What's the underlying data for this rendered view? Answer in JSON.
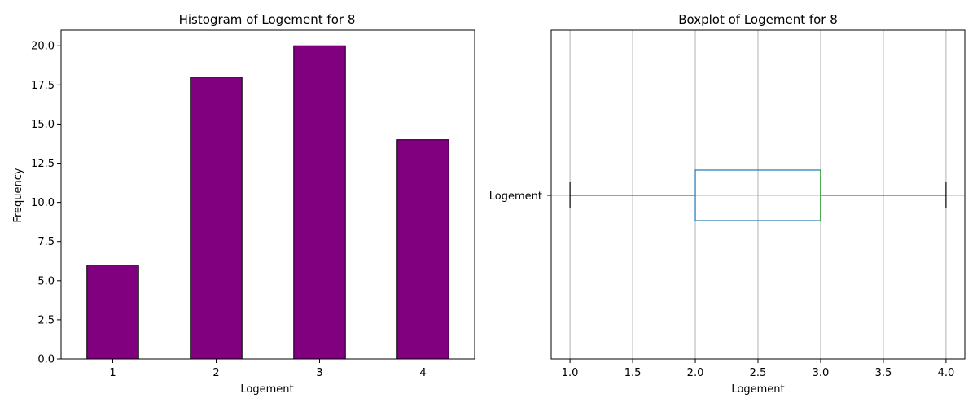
{
  "chart_data": [
    {
      "type": "bar",
      "title": "Histogram of Logement for 8",
      "xlabel": "Logement",
      "ylabel": "Frequency",
      "categories": [
        "1",
        "2",
        "3",
        "4"
      ],
      "values": [
        6,
        18,
        20,
        14
      ],
      "ylim": [
        0,
        21
      ],
      "yticks": [
        "0.0",
        "2.5",
        "5.0",
        "7.5",
        "10.0",
        "12.5",
        "15.0",
        "17.5",
        "20.0"
      ],
      "bar_color": "#800080",
      "edge_color": "#000000",
      "grid": false
    },
    {
      "type": "boxplot",
      "title": "Boxplot of Logement for 8",
      "xlabel": "Logement",
      "category_label": "Logement",
      "orientation": "horizontal",
      "xlim": [
        0.85,
        4.15
      ],
      "xticks": [
        "1.0",
        "1.5",
        "2.0",
        "2.5",
        "3.0",
        "3.5",
        "4.0"
      ],
      "min": 1.0,
      "q1": 2.0,
      "median": 3.0,
      "q3": 3.0,
      "max": 4.0,
      "box_color": "#1f77b4",
      "median_color": "#2ca02c",
      "grid": true
    }
  ]
}
